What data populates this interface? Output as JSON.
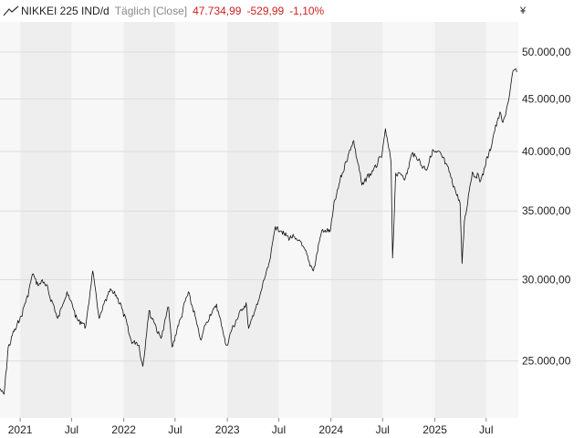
{
  "header": {
    "symbol": "NIKKEI 225 IND/d",
    "mode": "Täglich [Close]",
    "last": "47.734,99",
    "change": "-529,99",
    "change_pct": "-1,10%"
  },
  "colors": {
    "line": "#111111",
    "band_light": "#f7f7f7",
    "band_dark": "#eeeeee",
    "grid": "#dcdcdc",
    "negative": "#cc2222"
  },
  "chart_data": {
    "type": "line",
    "yscale": "log",
    "currency": "¥",
    "ylim": [
      22000,
      53500
    ],
    "xlim": [
      "2020-10-22",
      "2025-10-22"
    ],
    "y_ticks": [
      {
        "value": 25000,
        "label": "25.000,00"
      },
      {
        "value": 30000,
        "label": "30.000,00"
      },
      {
        "value": 35000,
        "label": "35.000,00"
      },
      {
        "value": 40000,
        "label": "40.000,00"
      },
      {
        "value": 45000,
        "label": "45.000,00"
      },
      {
        "value": 50000,
        "label": "50.000,00"
      }
    ],
    "x_ticks": [
      {
        "date": "2021-01-01",
        "label": "2021"
      },
      {
        "date": "2021-07-01",
        "label": "Jul"
      },
      {
        "date": "2022-01-01",
        "label": "2022"
      },
      {
        "date": "2022-07-01",
        "label": "Jul"
      },
      {
        "date": "2023-01-01",
        "label": "2023"
      },
      {
        "date": "2023-07-01",
        "label": "Jul"
      },
      {
        "date": "2024-01-01",
        "label": "2024"
      },
      {
        "date": "2024-07-01",
        "label": "Jul"
      },
      {
        "date": "2025-01-01",
        "label": "2025"
      },
      {
        "date": "2025-07-01",
        "label": "Jul"
      }
    ],
    "series": [
      {
        "x": [
          "2020-10-23",
          "2020-11-05",
          "2020-11-20",
          "2020-12-10",
          "2020-12-30",
          "2021-01-20",
          "2021-02-16",
          "2021-03-05",
          "2021-03-20",
          "2021-04-10",
          "2021-05-13",
          "2021-06-15",
          "2021-07-20",
          "2021-08-20",
          "2021-09-14",
          "2021-10-06",
          "2021-11-15",
          "2021-12-20",
          "2022-01-27",
          "2022-02-24",
          "2022-03-09",
          "2022-03-31",
          "2022-05-12",
          "2022-06-08",
          "2022-06-20",
          "2022-08-17",
          "2022-09-30",
          "2022-10-14",
          "2022-11-24",
          "2022-12-28",
          "2023-01-31",
          "2023-03-08",
          "2023-03-17",
          "2023-04-20",
          "2023-05-30",
          "2023-06-19",
          "2023-07-31",
          "2023-09-15",
          "2023-10-31",
          "2023-11-30",
          "2023-12-28",
          "2024-01-15",
          "2024-02-22",
          "2024-03-21",
          "2024-04-19",
          "2024-05-31",
          "2024-06-28",
          "2024-07-11",
          "2024-07-31",
          "2024-08-05",
          "2024-08-16",
          "2024-09-20",
          "2024-10-15",
          "2024-11-30",
          "2024-12-27",
          "2025-01-31",
          "2025-03-10",
          "2025-03-31",
          "2025-04-07",
          "2025-04-15",
          "2025-05-13",
          "2025-06-12",
          "2025-07-10",
          "2025-08-18",
          "2025-08-29",
          "2025-09-19",
          "2025-10-03",
          "2025-10-10",
          "2025-10-17"
        ],
        "y": [
          23500,
          23200,
          25800,
          26700,
          27400,
          28500,
          30400,
          29600,
          30000,
          29300,
          27500,
          29200,
          27500,
          27000,
          30600,
          27500,
          29400,
          28500,
          26200,
          25900,
          24700,
          28000,
          26300,
          28200,
          25800,
          29200,
          26200,
          27100,
          28400,
          25900,
          27400,
          28500,
          26900,
          28600,
          31300,
          33800,
          33100,
          32700,
          30600,
          33500,
          33400,
          35900,
          39100,
          41000,
          37100,
          38500,
          39500,
          42100,
          39000,
          31500,
          38100,
          37800,
          39900,
          38400,
          40100,
          39500,
          37000,
          35600,
          31100,
          34200,
          38200,
          37500,
          39800,
          43700,
          42700,
          45000,
          47900,
          48100,
          47800
        ]
      }
    ]
  }
}
